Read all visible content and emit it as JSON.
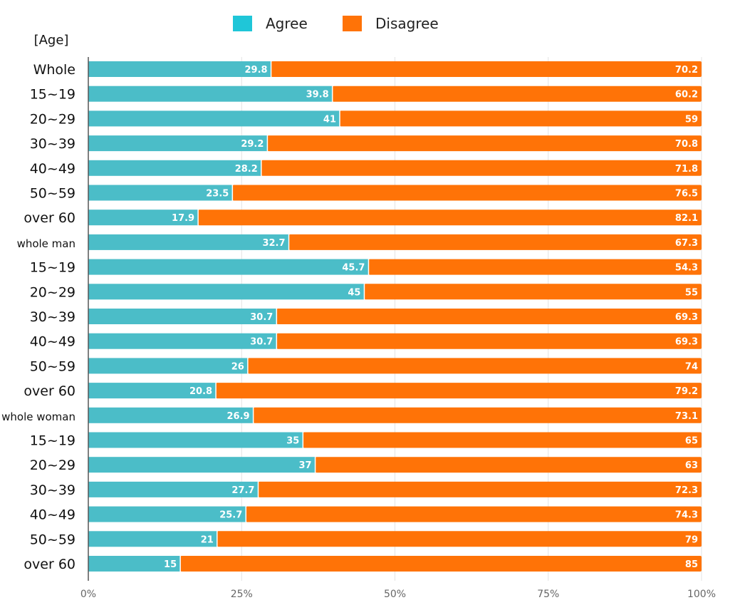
{
  "chart_data": {
    "type": "bar",
    "orientation": "horizontal",
    "stacked": true,
    "ylabel": "[Age]",
    "categories": [
      "Whole",
      "15~19",
      "20~29",
      "30~39",
      "40~49",
      "50~59",
      "over 60",
      "whole man",
      "15~19",
      "20~29",
      "30~39",
      "40~49",
      "50~59",
      "over 60",
      "whole woman",
      "15~19",
      "20~29",
      "30~39",
      "40~49",
      "50~59",
      "over 60"
    ],
    "series": [
      {
        "name": "Agree",
        "color": "#4bbdc8",
        "values": [
          29.8,
          39.8,
          41,
          29.2,
          28.2,
          23.5,
          17.9,
          32.7,
          45.7,
          45,
          30.7,
          30.7,
          26,
          20.8,
          26.9,
          35,
          37,
          27.7,
          25.7,
          21,
          15
        ]
      },
      {
        "name": "Disagree",
        "color": "#ff7307",
        "values": [
          70.2,
          60.2,
          59,
          70.8,
          71.8,
          76.5,
          82.1,
          67.3,
          54.3,
          55,
          69.3,
          69.3,
          74,
          79.2,
          73.1,
          65,
          63,
          72.3,
          74.3,
          79,
          85
        ]
      }
    ],
    "xticks": [
      "0%",
      "25%",
      "50%",
      "75%",
      "100%"
    ],
    "xlim": [
      0,
      100
    ],
    "legend_position": "top",
    "legend_colors": {
      "Agree": "#1fc6d8",
      "Disagree": "#ff7307"
    },
    "grid": true
  }
}
